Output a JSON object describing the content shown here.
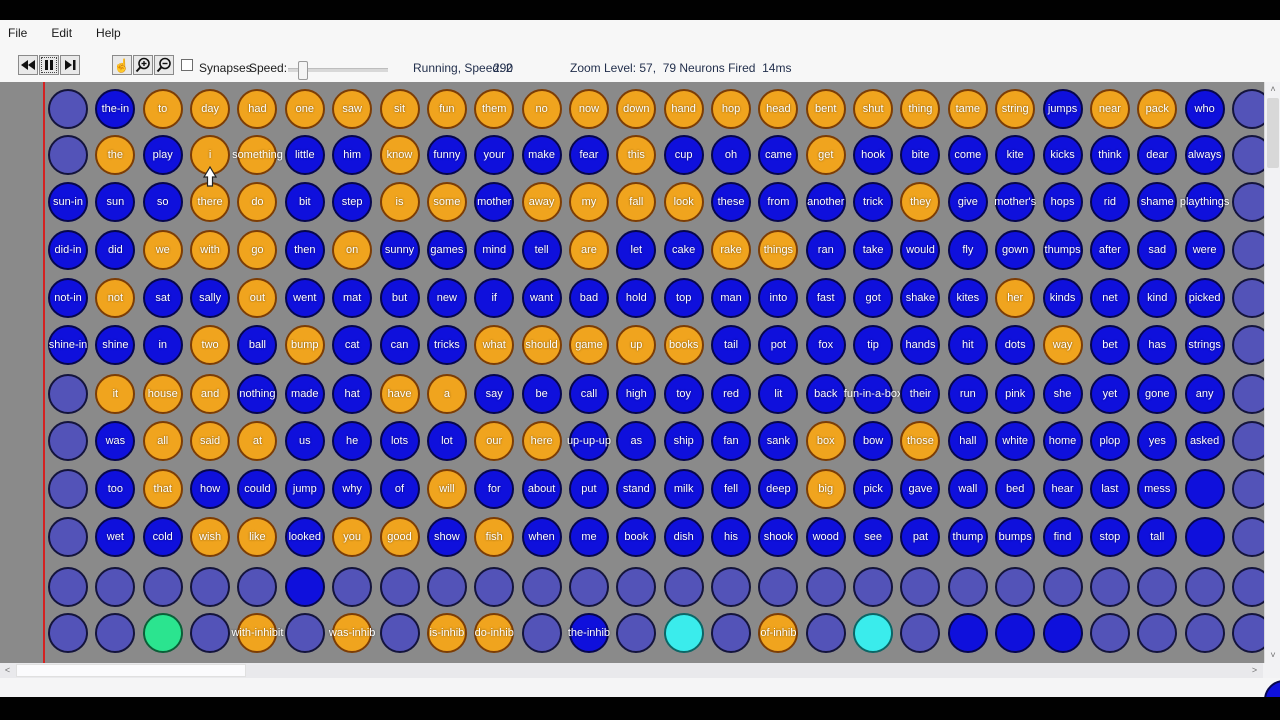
{
  "menu": {
    "items": [
      "File",
      "Edit",
      "Help"
    ]
  },
  "toolbar": {
    "synapses_label": "Synapses",
    "speed_label": "Speed:",
    "status_running": "Running, Speed: 2",
    "status_count": "290",
    "status_zoom": "Zoom Level: 57,  79 Neurons Fired  14ms",
    "icons": [
      "skip-back",
      "pause",
      "step-forward",
      "hand",
      "zoom-in",
      "zoom-out"
    ]
  },
  "colors": {
    "p": {
      "fill": "#5353b8",
      "border": "#14143c",
      "meaning": "inactive-empty-neuron"
    },
    "b": {
      "fill": "#0f10dc",
      "border": "#06064d",
      "meaning": "word-neuron"
    },
    "B": {
      "fill": "#0f10dc",
      "border": "#06064d",
      "meaning": "active-empty-neuron"
    },
    "o": {
      "fill": "#f0a41e",
      "border": "#7c3d05",
      "meaning": "fired-neuron"
    },
    "g": {
      "fill": "#2be48f",
      "border": "#0b5f38",
      "meaning": "green-neuron"
    },
    "c": {
      "fill": "#3aecec",
      "border": "#0b6666",
      "meaning": "cyan-neuron"
    }
  },
  "grid": {
    "rows": [
      [
        "p",
        "b:the-in",
        "o:to",
        "o:day",
        "o:had",
        "o:one",
        "o:saw",
        "o:sit",
        "o:fun",
        "o:them",
        "o:no",
        "o:now",
        "o:down",
        "o:hand",
        "o:hop",
        "o:head",
        "o:bent",
        "o:shut",
        "o:thing",
        "o:tame",
        "o:string",
        "b:jumps",
        "o:near",
        "o:pack",
        "b:who",
        "p"
      ],
      [
        "p",
        "o:the",
        "b:play",
        "o:i",
        "o:something",
        "b:little",
        "b:him",
        "o:know",
        "b:funny",
        "b:your",
        "b:make",
        "b:fear",
        "o:this",
        "b:cup",
        "b:oh",
        "b:came",
        "o:get",
        "b:hook",
        "b:bite",
        "b:come",
        "b:kite",
        "b:kicks",
        "b:think",
        "b:dear",
        "b:always",
        "p"
      ],
      [
        "b:sun-in",
        "b:sun",
        "b:so",
        "o:there",
        "o:do",
        "b:bit",
        "b:step",
        "o:is",
        "o:some",
        "b:mother",
        "o:away",
        "o:my",
        "o:fall",
        "o:look",
        "b:these",
        "b:from",
        "b:another",
        "b:trick",
        "o:they",
        "b:give",
        "b:mother's",
        "b:hops",
        "b:rid",
        "b:shame",
        "b:playthings",
        "p"
      ],
      [
        "b:did-in",
        "b:did",
        "o:we",
        "o:with",
        "o:go",
        "b:then",
        "o:on",
        "b:sunny",
        "b:games",
        "b:mind",
        "b:tell",
        "o:are",
        "b:let",
        "b:cake",
        "o:rake",
        "o:things",
        "b:ran",
        "b:take",
        "b:would",
        "b:fly",
        "b:gown",
        "b:thumps",
        "b:after",
        "b:sad",
        "b:were",
        "p"
      ],
      [
        "b:not-in",
        "o:not",
        "b:sat",
        "b:sally",
        "o:out",
        "b:went",
        "b:mat",
        "b:but",
        "b:new",
        "b:if",
        "b:want",
        "b:bad",
        "b:hold",
        "b:top",
        "b:man",
        "b:into",
        "b:fast",
        "b:got",
        "b:shake",
        "b:kites",
        "o:her",
        "b:kinds",
        "b:net",
        "b:kind",
        "b:picked",
        "p"
      ],
      [
        "b:shine-in",
        "b:shine",
        "b:in",
        "o:two",
        "b:ball",
        "o:bump",
        "b:cat",
        "b:can",
        "b:tricks",
        "o:what",
        "o:should",
        "o:game",
        "o:up",
        "o:books",
        "b:tail",
        "b:pot",
        "b:fox",
        "b:tip",
        "b:hands",
        "b:hit",
        "b:dots",
        "o:way",
        "b:bet",
        "b:has",
        "b:strings",
        "p"
      ],
      [
        "p",
        "o:it",
        "o:house",
        "o:and",
        "b:nothing",
        "b:made",
        "b:hat",
        "o:have",
        "o:a",
        "b:say",
        "b:be",
        "b:call",
        "b:high",
        "b:toy",
        "b:red",
        "b:lit",
        "b:back",
        "b:fun-in-a-box",
        "b:their",
        "b:run",
        "b:pink",
        "b:she",
        "b:yet",
        "b:gone",
        "b:any",
        "p"
      ],
      [
        "p",
        "b:was",
        "o:all",
        "o:said",
        "o:at",
        "b:us",
        "b:he",
        "b:lots",
        "b:lot",
        "o:our",
        "o:here",
        "b:up-up-up",
        "b:as",
        "b:ship",
        "b:fan",
        "b:sank",
        "o:box",
        "b:bow",
        "o:those",
        "b:hall",
        "b:white",
        "b:home",
        "b:plop",
        "b:yes",
        "b:asked",
        "p"
      ],
      [
        "p",
        "b:too",
        "o:that",
        "b:how",
        "b:could",
        "b:jump",
        "b:why",
        "b:of",
        "o:will",
        "b:for",
        "b:about",
        "b:put",
        "b:stand",
        "b:milk",
        "b:fell",
        "b:deep",
        "o:big",
        "b:pick",
        "b:gave",
        "b:wall",
        "b:bed",
        "b:hear",
        "b:last",
        "b:mess",
        "B",
        "p"
      ],
      [
        "p",
        "b:wet",
        "b:cold",
        "o:wish",
        "o:like",
        "b:looked",
        "o:you",
        "o:good",
        "b:show",
        "o:fish",
        "b:when",
        "b:me",
        "b:book",
        "b:dish",
        "b:his",
        "b:shook",
        "b:wood",
        "b:see",
        "b:pat",
        "b:thump",
        "b:bumps",
        "b:find",
        "b:stop",
        "b:tall",
        "B",
        "p"
      ],
      [
        "p",
        "p",
        "p",
        "p",
        "p",
        "B",
        "p",
        "p",
        "p",
        "p",
        "p",
        "p",
        "p",
        "p",
        "p",
        "p",
        "p",
        "p",
        "p",
        "p",
        "p",
        "p",
        "p",
        "p",
        "p",
        "p"
      ],
      [
        "p",
        "p",
        "g",
        "p",
        "o:with-inhibit",
        "p",
        "o:was-inhib",
        "p",
        "o:is-inhib",
        "o:do-inhib",
        "p",
        "b:the-inhib",
        "p",
        "c",
        "p",
        "o:of-inhib",
        "p",
        "c",
        "p",
        "B",
        "B",
        "B",
        "p",
        "p",
        "p",
        "p"
      ]
    ]
  }
}
